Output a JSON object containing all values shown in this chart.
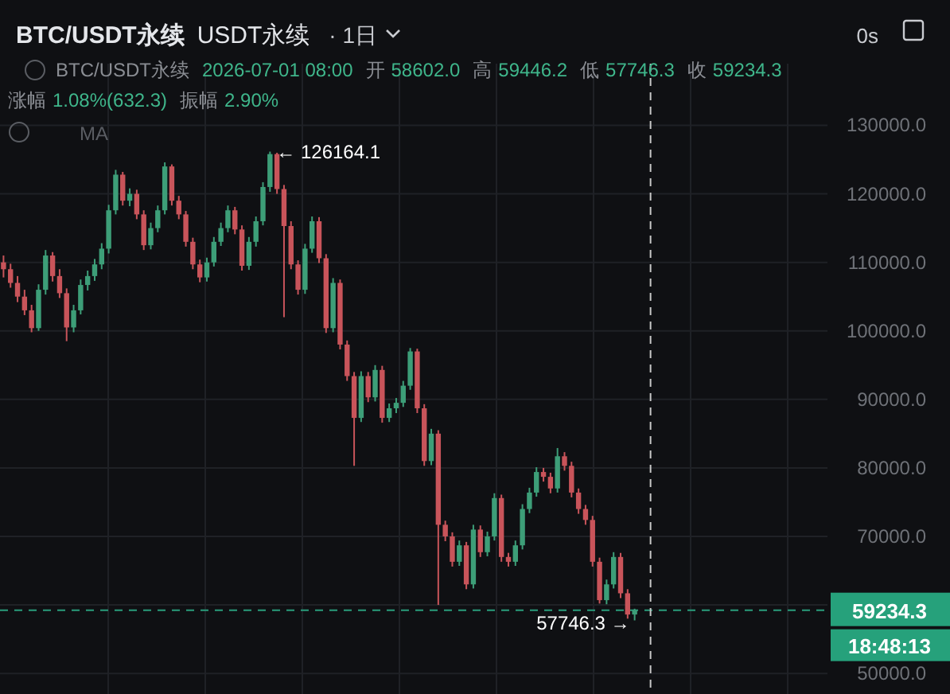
{
  "chart_data": {
    "type": "candlestick",
    "title": "BTC/USDT永续",
    "subtitle": "USDT永续",
    "categories": [
      null,
      null,
      null,
      null,
      null,
      null,
      null,
      null,
      null,
      null,
      null,
      null,
      null,
      null,
      null,
      null,
      null,
      null,
      null,
      null,
      null,
      null,
      null,
      null,
      null,
      null,
      null,
      null,
      null,
      null,
      null,
      null,
      null,
      null,
      null,
      null,
      null,
      null,
      null,
      null,
      null,
      null,
      null,
      null,
      null,
      null,
      null,
      null,
      null,
      null,
      null,
      null,
      null,
      null,
      null,
      null,
      null,
      null,
      null,
      null,
      null,
      null,
      null,
      null,
      null,
      null,
      null,
      null,
      null,
      null,
      null,
      null,
      null,
      null,
      null,
      null,
      null,
      null,
      null,
      null,
      null,
      null,
      null,
      null,
      null,
      null,
      null,
      null,
      null,
      null,
      null,
      null,
      null,
      null,
      null,
      null,
      null,
      null,
      null,
      null,
      null,
      null,
      null,
      null,
      null,
      null,
      null,
      null,
      null,
      null,
      null,
      null,
      null,
      null,
      null,
      null,
      null,
      null
    ],
    "ohlc": [
      [
        110000,
        111000,
        107800,
        109000
      ],
      [
        109000,
        109800,
        106300,
        107000
      ],
      [
        107000,
        108000,
        104200,
        105000
      ],
      [
        105000,
        106000,
        102300,
        103000
      ],
      [
        103000,
        103800,
        99800,
        100400
      ],
      [
        100400,
        106800,
        100000,
        106000
      ],
      [
        106000,
        111800,
        105300,
        111000
      ],
      [
        111000,
        111500,
        107200,
        108000
      ],
      [
        108000,
        109000,
        104800,
        105500
      ],
      [
        105500,
        106200,
        98500,
        100500
      ],
      [
        100500,
        103800,
        99800,
        103000
      ],
      [
        103000,
        107500,
        102400,
        106700
      ],
      [
        106700,
        108800,
        105900,
        108000
      ],
      [
        108000,
        110500,
        107300,
        109700
      ],
      [
        109700,
        112800,
        109000,
        112000
      ],
      [
        112000,
        118400,
        111300,
        117600
      ],
      [
        117600,
        123500,
        117000,
        122800
      ],
      [
        122800,
        123200,
        118300,
        119000
      ],
      [
        119000,
        120800,
        118200,
        120000
      ],
      [
        120000,
        120600,
        116300,
        117000
      ],
      [
        117000,
        117600,
        111800,
        112500
      ],
      [
        112500,
        115800,
        111900,
        115000
      ],
      [
        115000,
        118300,
        114400,
        117600
      ],
      [
        117600,
        124600,
        117000,
        124000
      ],
      [
        124000,
        124300,
        118300,
        119000
      ],
      [
        119000,
        119700,
        116300,
        117000
      ],
      [
        117000,
        117500,
        112300,
        113000
      ],
      [
        113000,
        113600,
        109000,
        109700
      ],
      [
        109700,
        110400,
        107100,
        107800
      ],
      [
        107800,
        110700,
        107200,
        110000
      ],
      [
        110000,
        113700,
        109400,
        113000
      ],
      [
        113000,
        115800,
        112400,
        115000
      ],
      [
        115000,
        118300,
        114400,
        117600
      ],
      [
        117600,
        118100,
        114100,
        114800
      ],
      [
        114800,
        115400,
        108800,
        109500
      ],
      [
        109500,
        113700,
        108900,
        113000
      ],
      [
        113000,
        116700,
        112300,
        116000
      ],
      [
        116000,
        121700,
        115400,
        121000
      ],
      [
        121000,
        126164.1,
        120300,
        125800
      ],
      [
        125800,
        126000,
        120000,
        120700
      ],
      [
        120700,
        121300,
        102000,
        115300
      ],
      [
        115300,
        116000,
        109000,
        109700
      ],
      [
        109700,
        110300,
        105300,
        106000
      ],
      [
        106000,
        112700,
        105400,
        112000
      ],
      [
        112000,
        116700,
        111400,
        116000
      ],
      [
        116000,
        116600,
        109900,
        110600
      ],
      [
        110600,
        111200,
        99700,
        100400
      ],
      [
        100400,
        107700,
        99800,
        107000
      ],
      [
        107000,
        107500,
        97300,
        98000
      ],
      [
        98000,
        98600,
        92700,
        93400
      ],
      [
        93400,
        94000,
        80300,
        87300
      ],
      [
        87300,
        94100,
        86700,
        93400
      ],
      [
        93400,
        94000,
        89600,
        90300
      ],
      [
        90300,
        95000,
        89700,
        94300
      ],
      [
        94300,
        94900,
        86600,
        87300
      ],
      [
        87300,
        89400,
        86700,
        88700
      ],
      [
        88700,
        90200,
        88000,
        89500
      ],
      [
        89500,
        92700,
        88900,
        92000
      ],
      [
        92000,
        97500,
        91400,
        97000
      ],
      [
        97000,
        97400,
        88000,
        88700
      ],
      [
        88700,
        89300,
        80300,
        81000
      ],
      [
        81000,
        85700,
        80400,
        85000
      ],
      [
        85000,
        85500,
        60000,
        71700
      ],
      [
        71700,
        72300,
        69300,
        70000
      ],
      [
        70000,
        70600,
        65600,
        66300
      ],
      [
        66300,
        69400,
        65700,
        68700
      ],
      [
        68700,
        69200,
        62300,
        63000
      ],
      [
        63000,
        71700,
        62400,
        71000
      ],
      [
        71000,
        71600,
        67000,
        67700
      ],
      [
        67700,
        70700,
        67100,
        70000
      ],
      [
        70000,
        76300,
        69400,
        75600
      ],
      [
        75600,
        76100,
        66300,
        67000
      ],
      [
        67000,
        67600,
        65600,
        66300
      ],
      [
        66300,
        69400,
        65700,
        68700
      ],
      [
        68700,
        74700,
        68100,
        74000
      ],
      [
        74000,
        77100,
        73400,
        76400
      ],
      [
        76400,
        80100,
        75800,
        79400
      ],
      [
        79400,
        80000,
        78000,
        78700
      ],
      [
        78700,
        79300,
        76300,
        77000
      ],
      [
        77000,
        82900,
        76400,
        81700
      ],
      [
        81700,
        82300,
        79600,
        80300
      ],
      [
        80300,
        80900,
        75700,
        76400
      ],
      [
        76400,
        77000,
        73300,
        74000
      ],
      [
        74000,
        74600,
        71700,
        72400
      ],
      [
        72400,
        73000,
        65600,
        66300
      ],
      [
        66300,
        66900,
        60200,
        60700
      ],
      [
        60700,
        63700,
        60100,
        63000
      ],
      [
        63000,
        67700,
        62400,
        67000
      ],
      [
        67000,
        67600,
        61000,
        61700
      ],
      [
        61700,
        62300,
        58000,
        58600
      ],
      [
        58602.0,
        59446.2,
        57746.3,
        59234.3
      ],
      null,
      null,
      null,
      null,
      null,
      null,
      null,
      null,
      null,
      null,
      null,
      null,
      null,
      null,
      null,
      null,
      null,
      null,
      null,
      null,
      null,
      null,
      null,
      null,
      null,
      null,
      null
    ],
    "colors": [
      "#c8545a",
      "#c8545a",
      "#c8545a",
      "#c8545a",
      "#c8545a",
      "#3d9e78",
      "#3d9e78",
      "#c8545a",
      "#c8545a",
      "#c8545a",
      "#3d9e78",
      "#3d9e78",
      "#3d9e78",
      "#3d9e78",
      "#3d9e78",
      "#3d9e78",
      "#3d9e78",
      "#c8545a",
      "#3d9e78",
      "#c8545a",
      "#c8545a",
      "#3d9e78",
      "#3d9e78",
      "#3d9e78",
      "#c8545a",
      "#c8545a",
      "#c8545a",
      "#c8545a",
      "#c8545a",
      "#3d9e78",
      "#3d9e78",
      "#3d9e78",
      "#3d9e78",
      "#c8545a",
      "#c8545a",
      "#3d9e78",
      "#3d9e78",
      "#3d9e78",
      "#3d9e78",
      "#c8545a",
      "#c8545a",
      "#c8545a",
      "#c8545a",
      "#3d9e78",
      "#3d9e78",
      "#c8545a",
      "#c8545a",
      "#3d9e78",
      "#c8545a",
      "#c8545a",
      "#c8545a",
      "#3d9e78",
      "#c8545a",
      "#3d9e78",
      "#c8545a",
      "#3d9e78",
      "#3d9e78",
      "#3d9e78",
      "#3d9e78",
      "#c8545a",
      "#c8545a",
      "#3d9e78",
      "#c8545a",
      "#c8545a",
      "#c8545a",
      "#3d9e78",
      "#c8545a",
      "#3d9e78",
      "#c8545a",
      "#3d9e78",
      "#3d9e78",
      "#c8545a",
      "#c8545a",
      "#3d9e78",
      "#3d9e78",
      "#3d9e78",
      "#3d9e78",
      "#c8545a",
      "#c8545a",
      "#3d9e78",
      "#c8545a",
      "#c8545a",
      "#c8545a",
      "#c8545a",
      "#c8545a",
      "#c8545a",
      "#3d9e78",
      "#3d9e78",
      "#c8545a",
      "#c8545a",
      "#3d9e78",
      null,
      null,
      null,
      null,
      null,
      null,
      null,
      null,
      null,
      null,
      null,
      null,
      null,
      null,
      null,
      null,
      null,
      null,
      null,
      null,
      null,
      null,
      null,
      null,
      null,
      null,
      null
    ],
    "ylim": [
      47000,
      139000
    ],
    "yticks": [
      {
        "value": 50000,
        "label": "50000.0"
      },
      {
        "value": 60000,
        "label": null
      },
      {
        "value": 70000,
        "label": "70000.0"
      },
      {
        "value": 80000,
        "label": "80000.0"
      },
      {
        "value": 90000,
        "label": "90000.0"
      },
      {
        "value": 100000,
        "label": "100000.0"
      },
      {
        "value": 110000,
        "label": "110000.0"
      },
      {
        "value": 120000,
        "label": "120000.0"
      },
      {
        "value": 130000,
        "label": "130000.0"
      }
    ],
    "tick_labels": "y",
    "grid": true,
    "ref_lines": [
      {
        "axis": "y",
        "value": 59234.3,
        "label": "59234.3",
        "color": "#2a9d7c",
        "line_style": "dashed"
      },
      {
        "axis": "x",
        "color": "#c8c8c8",
        "line_style": "dashed"
      }
    ],
    "annotations": [
      "· 1日",
      "0s",
      "BTC/USDT永续",
      "2026-07-01 08:00",
      "开",
      "58602.0",
      "高",
      "59446.2",
      "低",
      "57746.3",
      "收",
      "59234.3",
      "涨幅",
      "1.08%(632.3)",
      "振幅",
      "2.90%",
      "MA",
      "← 126164.1",
      "57746.3 →",
      "18:48:13"
    ]
  }
}
